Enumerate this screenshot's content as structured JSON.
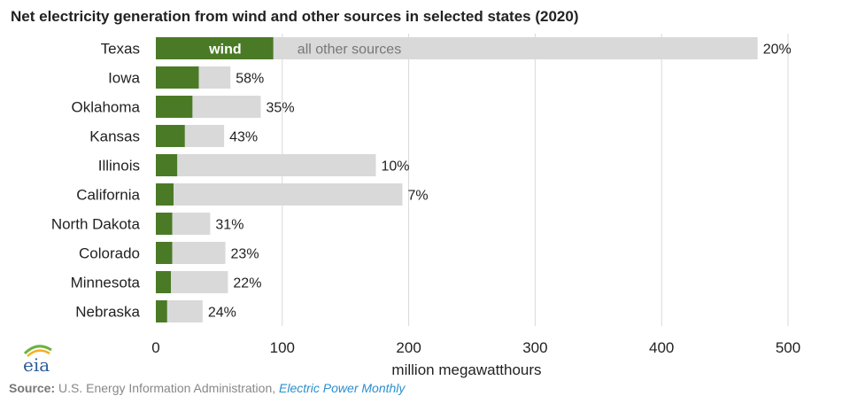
{
  "colors": {
    "wind": "#4a7a26",
    "other": "#d9d9d9",
    "grid": "#d9d9d9",
    "logo_blue": "#2b5d9a",
    "logo_green": "#6cb33f",
    "logo_yellow": "#f2b01e"
  },
  "logo": {
    "text": "eia"
  },
  "source": {
    "label": "Source:",
    "text": "U.S. Energy Information Administration,",
    "link": "Electric Power Monthly"
  },
  "chart_data": {
    "type": "bar",
    "orientation": "horizontal",
    "stacked": true,
    "title": "Net electricity generation from wind and other sources in selected states (2020)",
    "xlabel": "million megawatthours",
    "xlim": [
      0,
      500
    ],
    "x_ticks": [
      "0",
      "100",
      "200",
      "300",
      "400",
      "500"
    ],
    "grid": true,
    "categories": [
      "Texas",
      "Iowa",
      "Oklahoma",
      "Kansas",
      "Illinois",
      "California",
      "North Dakota",
      "Colorado",
      "Minnesota",
      "Nebraska"
    ],
    "series": [
      {
        "name": "wind",
        "values": [
          93,
          34,
          29,
          23,
          17,
          14,
          13,
          13,
          12,
          9
        ]
      },
      {
        "name": "all other sources",
        "values": [
          383,
          25,
          54,
          31,
          157,
          181,
          30,
          42,
          45,
          28
        ]
      }
    ],
    "wind_share_labels": [
      "20%",
      "58%",
      "35%",
      "43%",
      "10%",
      "7%",
      "31%",
      "23%",
      "22%",
      "24%"
    ]
  }
}
